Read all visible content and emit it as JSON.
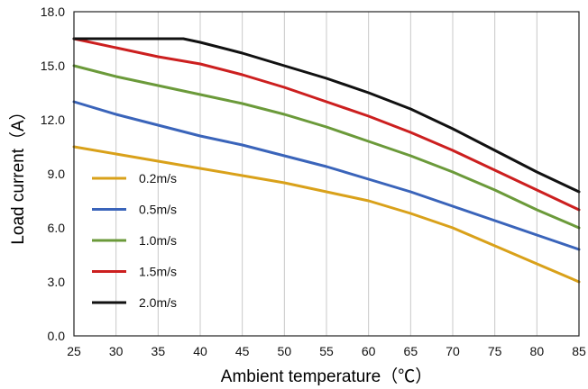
{
  "chart_data": {
    "type": "line",
    "xlabel": "Ambient temperature（℃）",
    "ylabel": "Load current（A）",
    "xlim": [
      25,
      85
    ],
    "ylim": [
      0,
      18
    ],
    "xticks": [
      "25",
      "30",
      "35",
      "40",
      "45",
      "50",
      "55",
      "60",
      "65",
      "70",
      "75",
      "80",
      "85"
    ],
    "yticks": [
      "0.0",
      "3.0",
      "6.0",
      "9.0",
      "12.0",
      "15.0",
      "18.0"
    ],
    "grid": "vertical",
    "legend": "left",
    "series": [
      {
        "name": "0.2m/s",
        "color": "#d9a11a",
        "x": [
          25,
          30,
          35,
          40,
          45,
          50,
          55,
          60,
          65,
          70,
          75,
          80,
          85
        ],
        "y": [
          10.5,
          10.1,
          9.7,
          9.3,
          8.9,
          8.5,
          8.0,
          7.5,
          6.8,
          6.0,
          5.0,
          4.0,
          3.0
        ]
      },
      {
        "name": "0.5m/s",
        "color": "#3a64ba",
        "x": [
          25,
          30,
          35,
          40,
          45,
          50,
          55,
          60,
          65,
          70,
          75,
          80,
          85
        ],
        "y": [
          13.0,
          12.3,
          11.7,
          11.1,
          10.6,
          10.0,
          9.4,
          8.7,
          8.0,
          7.2,
          6.4,
          5.6,
          4.8
        ]
      },
      {
        "name": "1.0m/s",
        "color": "#6b9a3a",
        "x": [
          25,
          30,
          35,
          40,
          45,
          50,
          55,
          60,
          65,
          70,
          75,
          80,
          85
        ],
        "y": [
          15.0,
          14.4,
          13.9,
          13.4,
          12.9,
          12.3,
          11.6,
          10.8,
          10.0,
          9.1,
          8.1,
          7.0,
          6.0
        ]
      },
      {
        "name": "1.5m/s",
        "color": "#cc1f1f",
        "x": [
          25,
          30,
          35,
          40,
          45,
          50,
          55,
          60,
          65,
          70,
          75,
          80,
          85
        ],
        "y": [
          16.5,
          16.0,
          15.5,
          15.1,
          14.5,
          13.8,
          13.0,
          12.2,
          11.3,
          10.3,
          9.2,
          8.1,
          7.0
        ]
      },
      {
        "name": "2.0m/s",
        "color": "#111111",
        "x": [
          25,
          30,
          35,
          38,
          40,
          45,
          50,
          55,
          60,
          65,
          70,
          75,
          80,
          85
        ],
        "y": [
          16.5,
          16.5,
          16.5,
          16.5,
          16.3,
          15.7,
          15.0,
          14.3,
          13.5,
          12.6,
          11.5,
          10.3,
          9.1,
          8.0
        ]
      }
    ]
  }
}
